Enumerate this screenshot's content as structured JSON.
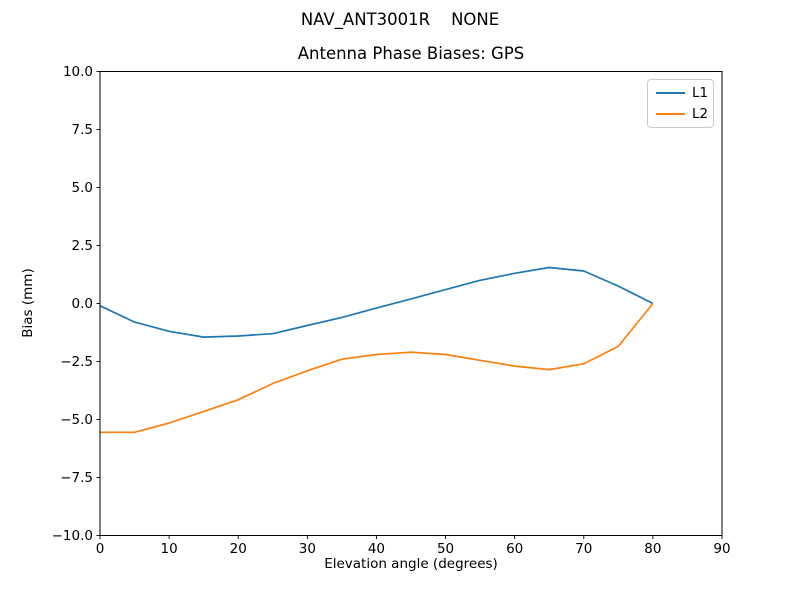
{
  "figure": {
    "suptitle": "NAV_ANT3001R    NONE"
  },
  "chart_data": {
    "type": "line",
    "title": "Antenna Phase Biases: GPS",
    "xlabel": "Elevation angle (degrees)",
    "ylabel": "Bias (mm)",
    "xlim": [
      0,
      90
    ],
    "ylim": [
      -10,
      10
    ],
    "grid": false,
    "legend_position": "upper right",
    "frame_color": "#000000",
    "xticks": [
      {
        "v": 0,
        "label": "0"
      },
      {
        "v": 10,
        "label": "10"
      },
      {
        "v": 20,
        "label": "20"
      },
      {
        "v": 30,
        "label": "30"
      },
      {
        "v": 40,
        "label": "40"
      },
      {
        "v": 50,
        "label": "50"
      },
      {
        "v": 60,
        "label": "60"
      },
      {
        "v": 70,
        "label": "70"
      },
      {
        "v": 80,
        "label": "80"
      },
      {
        "v": 90,
        "label": "90"
      }
    ],
    "yticks": [
      {
        "v": 10,
        "label": "10.0"
      },
      {
        "v": 7.5,
        "label": "7.5"
      },
      {
        "v": 5,
        "label": "5.0"
      },
      {
        "v": 2.5,
        "label": "2.5"
      },
      {
        "v": 0,
        "label": "0.0"
      },
      {
        "v": -2.5,
        "label": "−2.5"
      },
      {
        "v": -5,
        "label": "−5.0"
      },
      {
        "v": -7.5,
        "label": "−7.5"
      },
      {
        "v": -10,
        "label": "−10.0"
      }
    ],
    "x": [
      0,
      5,
      10,
      15,
      20,
      25,
      30,
      35,
      40,
      45,
      50,
      55,
      60,
      65,
      70,
      75,
      80
    ],
    "series": [
      {
        "name": "L1",
        "color": "#1f77b4",
        "values": [
          -0.1,
          -0.8,
          -1.2,
          -1.45,
          -1.4,
          -1.3,
          -0.95,
          -0.6,
          -0.2,
          0.2,
          0.6,
          1.0,
          1.3,
          1.55,
          1.4,
          0.75,
          0.0
        ]
      },
      {
        "name": "L2",
        "color": "#ff7f0e",
        "values": [
          -5.55,
          -5.55,
          -5.15,
          -4.65,
          -4.15,
          -3.45,
          -2.9,
          -2.4,
          -2.2,
          -2.1,
          -2.2,
          -2.45,
          -2.7,
          -2.85,
          -2.6,
          -1.85,
          0.0
        ]
      }
    ]
  }
}
